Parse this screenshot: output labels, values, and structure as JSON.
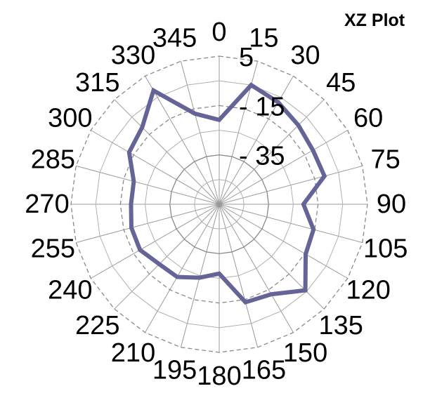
{
  "chart_data": {
    "type": "radar",
    "title": "XZ Plot",
    "angles": [
      0,
      15,
      30,
      45,
      60,
      75,
      90,
      105,
      120,
      135,
      150,
      165,
      180,
      195,
      210,
      225,
      240,
      255,
      270,
      285,
      300,
      315,
      330,
      345
    ],
    "angle_labels": [
      "0",
      "15",
      "30",
      "45",
      "60",
      "75",
      "90",
      "105",
      "120",
      "135",
      "150",
      "165",
      "180",
      "195",
      "210",
      "225",
      "240",
      "255",
      "270",
      "285",
      "300",
      "315",
      "330",
      "345"
    ],
    "radial_ticks": [
      -35,
      -15,
      5
    ],
    "radial_tick_labels": [
      "- 35",
      "- 15",
      "5"
    ],
    "rlim": [
      -55,
      5
    ],
    "grid": true,
    "legend": "none",
    "series": [
      {
        "color": "#646496",
        "values": [
          -20.8,
          -5.0,
          -7.3,
          -9.7,
          -11.2,
          -10.9,
          -20.9,
          -15.5,
          -14.6,
          -5.7,
          -12.9,
          -13.9,
          -26.9,
          -24.2,
          -21.0,
          -20.7,
          -18.0,
          -18.2,
          -19.3,
          -19.2,
          -12.9,
          -10.9,
          -1.8,
          -17.0
        ]
      }
    ]
  }
}
